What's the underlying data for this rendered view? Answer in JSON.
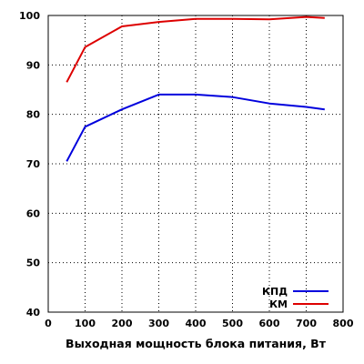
{
  "chart_data": {
    "type": "line",
    "xlabel": "Выходная мощность блока питания, Вт",
    "ylabel": "",
    "xlim": [
      0,
      800
    ],
    "ylim": [
      40,
      100
    ],
    "xticks": [
      0,
      100,
      200,
      300,
      400,
      500,
      600,
      700,
      800
    ],
    "yticks": [
      40,
      50,
      60,
      70,
      80,
      90,
      100
    ],
    "grid": true,
    "legend_position": "bottom-right",
    "series": [
      {
        "name": "КПД",
        "color": "#0000dd",
        "x": [
          50,
          100,
          200,
          300,
          400,
          500,
          600,
          700,
          750
        ],
        "y": [
          70.5,
          77.5,
          81.0,
          84.0,
          84.0,
          83.5,
          82.2,
          81.5,
          81.0
        ]
      },
      {
        "name": "КМ",
        "color": "#dd0000",
        "x": [
          50,
          100,
          200,
          300,
          400,
          500,
          600,
          700,
          750
        ],
        "y": [
          86.5,
          93.6,
          97.8,
          98.7,
          99.3,
          99.3,
          99.2,
          99.7,
          99.5
        ]
      }
    ]
  }
}
